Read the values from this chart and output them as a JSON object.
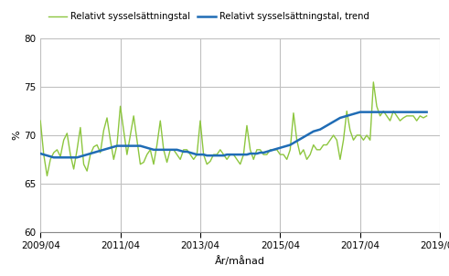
{
  "title": "",
  "ylabel": "%",
  "xlabel": "År/månad",
  "ylim": [
    60,
    80
  ],
  "yticks": [
    60,
    65,
    70,
    75,
    80
  ],
  "xtick_labels": [
    "2009/04",
    "2011/04",
    "2013/04",
    "2015/04",
    "2017/04",
    "2019/04"
  ],
  "xtick_positions": [
    0,
    24,
    48,
    72,
    96,
    120
  ],
  "legend1": "Relativt sysselsättningstal",
  "legend2": "Relativt sysselsättningstal, trend",
  "line1_color": "#8dc63f",
  "line2_color": "#1f6cb5",
  "background_color": "#ffffff",
  "grid_color": "#c0c0c0",
  "raw_values": [
    71.5,
    68.0,
    65.8,
    67.5,
    68.2,
    68.5,
    67.8,
    69.5,
    70.2,
    68.0,
    66.5,
    68.5,
    70.8,
    67.0,
    66.3,
    68.0,
    68.8,
    69.0,
    68.2,
    70.5,
    71.8,
    69.5,
    67.5,
    69.0,
    73.0,
    70.5,
    68.0,
    70.0,
    72.0,
    69.5,
    67.0,
    67.2,
    68.0,
    68.5,
    67.0,
    69.0,
    71.5,
    68.5,
    67.2,
    68.5,
    68.5,
    68.0,
    67.5,
    68.5,
    68.5,
    68.0,
    67.5,
    68.0,
    71.5,
    68.0,
    67.0,
    67.3,
    68.0,
    68.0,
    68.5,
    68.0,
    67.5,
    68.0,
    68.0,
    67.5,
    67.0,
    68.0,
    71.0,
    68.5,
    67.5,
    68.5,
    68.5,
    68.0,
    68.0,
    68.5,
    68.5,
    68.5,
    68.0,
    68.0,
    67.5,
    68.5,
    72.3,
    69.5,
    68.0,
    68.5,
    67.5,
    68.0,
    69.0,
    68.5,
    68.5,
    69.0,
    69.0,
    69.5,
    70.0,
    69.5,
    67.5,
    69.5,
    72.5,
    70.5,
    69.5,
    70.0,
    70.0,
    69.5,
    70.0,
    69.5,
    75.5,
    73.0,
    72.0,
    72.5,
    72.0,
    71.5,
    72.5,
    72.0,
    71.5,
    71.8,
    72.0,
    72.0,
    72.0,
    71.5,
    72.0,
    71.8,
    72.0,
    72.2,
    72.0
  ],
  "trend_values": [
    68.1,
    68.0,
    67.9,
    67.8,
    67.7,
    67.7,
    67.7,
    67.7,
    67.7,
    67.7,
    67.7,
    67.7,
    67.8,
    67.9,
    68.0,
    68.1,
    68.2,
    68.3,
    68.4,
    68.5,
    68.6,
    68.7,
    68.8,
    68.9,
    68.9,
    68.9,
    68.9,
    68.9,
    68.9,
    68.9,
    68.9,
    68.8,
    68.7,
    68.6,
    68.5,
    68.5,
    68.5,
    68.5,
    68.5,
    68.5,
    68.5,
    68.5,
    68.4,
    68.3,
    68.3,
    68.2,
    68.1,
    68.0,
    68.0,
    68.0,
    67.9,
    67.9,
    67.9,
    67.9,
    67.9,
    67.9,
    68.0,
    68.0,
    68.0,
    68.0,
    68.0,
    68.0,
    68.0,
    68.1,
    68.1,
    68.1,
    68.2,
    68.2,
    68.3,
    68.4,
    68.5,
    68.6,
    68.7,
    68.8,
    68.9,
    69.0,
    69.2,
    69.4,
    69.6,
    69.8,
    70.0,
    70.2,
    70.4,
    70.5,
    70.6,
    70.8,
    71.0,
    71.2,
    71.4,
    71.6,
    71.8,
    71.9,
    72.0,
    72.1,
    72.2,
    72.3,
    72.4,
    72.4,
    72.4,
    72.4,
    72.4,
    72.4,
    72.4,
    72.4,
    72.4,
    72.4,
    72.4,
    72.4,
    72.4,
    72.4,
    72.4,
    72.4,
    72.4,
    72.4,
    72.4,
    72.4,
    72.4
  ]
}
